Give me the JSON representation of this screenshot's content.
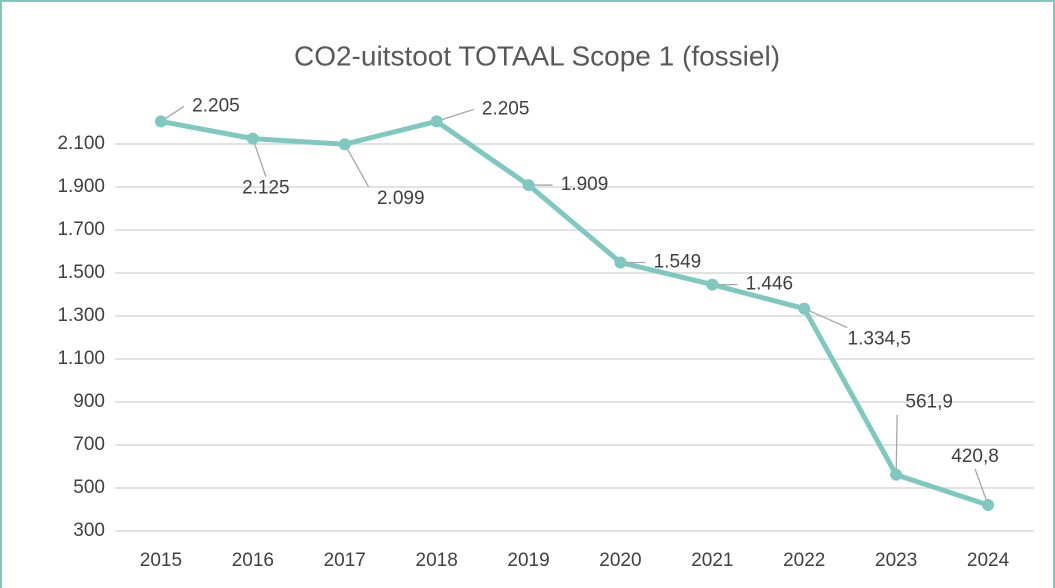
{
  "chart_data": {
    "type": "line",
    "title": "CO2-uitstoot TOTAAL Scope 1 (fossiel)",
    "categories": [
      "2015",
      "2016",
      "2017",
      "2018",
      "2019",
      "2020",
      "2021",
      "2022",
      "2023",
      "2024"
    ],
    "series": [
      {
        "name": "CO2-uitstoot",
        "color": "#7ec8bf",
        "values": [
          2205,
          2125,
          2099,
          2205,
          1909,
          1549,
          1446,
          1334.5,
          561.9,
          420.8
        ],
        "value_labels": [
          "2.205",
          "2.125",
          "2.099",
          "2.205",
          "1.909",
          "1.549",
          "1.446",
          "1.334,5",
          "561,9",
          "420,8"
        ]
      }
    ],
    "ylim": [
      300,
      2300
    ],
    "yticks": [
      300,
      500,
      700,
      900,
      {
        "value": 1100,
        "label": "1.100"
      },
      {
        "value": 1300,
        "label": "1.300"
      },
      {
        "value": 1500,
        "label": "1.500"
      },
      {
        "value": 1700,
        "label": "1.700"
      },
      {
        "value": 1900,
        "label": "1.900"
      },
      {
        "value": 2100,
        "label": "2.100"
      }
    ],
    "grid": true
  }
}
